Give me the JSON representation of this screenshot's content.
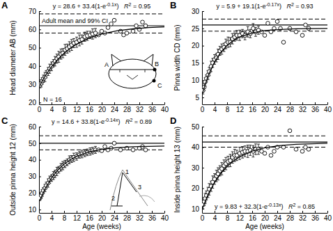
{
  "chart_data": [
    {
      "type": "scatter",
      "label": "A",
      "y_label": "Head diameter AB (mm)",
      "xlim": [
        0,
        40
      ],
      "xticks": [
        0,
        4,
        8,
        12,
        16,
        20,
        24,
        28,
        32,
        36,
        40
      ],
      "ylim": [
        19,
        70
      ],
      "yticks": [
        20,
        30,
        40,
        50,
        60,
        70
      ],
      "equation": [
        "y = 28.6 + 33.4(1-e",
        "-0.1x",
        ")"
      ],
      "r2": [
        "R",
        "2",
        " = 0.95"
      ],
      "adult_mean": 62,
      "adult_ci": [
        58,
        68.5
      ],
      "annotations": [
        "Adult mean and 99% CI",
        "N = 16",
        "A",
        "B",
        "C"
      ],
      "series": [
        {
          "type": "scatter",
          "marker": "circle",
          "x": [
            0.3,
            0.7,
            1,
            1.4,
            1.9,
            2.3,
            2.9,
            3.4,
            4,
            4.6,
            5.1,
            5.7,
            6.3,
            7,
            7.6,
            8.3,
            9,
            9.7,
            10.4,
            11.1,
            12,
            12.9,
            13.7,
            14.6,
            15.4,
            16.3,
            17.1,
            18
          ],
          "values": [
            29.5,
            30.5,
            31.8,
            33,
            34,
            35.5,
            37,
            38.5,
            39.8,
            41.5,
            42.6,
            44,
            45,
            46.5,
            47,
            48.8,
            49.5,
            50.5,
            51.5,
            52.5,
            53,
            54,
            54.5,
            56,
            56.5,
            57,
            57.5,
            58
          ],
          "error": [
            1.5,
            2,
            1.8,
            2,
            2.5,
            2,
            2.2,
            2.5,
            2.4,
            2,
            2.6,
            2.5,
            3,
            2.8,
            2.5,
            3,
            2.5,
            2.8,
            3,
            2.5,
            2.8,
            3,
            2.5,
            2.5,
            2.5,
            2,
            2.8,
            2.5
          ]
        },
        {
          "type": "scatter",
          "marker": "circle",
          "x": [
            19,
            20,
            21,
            22,
            23,
            24,
            26,
            27,
            28,
            30,
            31,
            32,
            33,
            34
          ],
          "values": [
            57,
            59,
            58,
            61,
            63,
            65,
            59,
            57,
            58,
            59,
            62,
            60,
            64,
            62
          ]
        },
        {
          "type": "line",
          "line_style": "solid",
          "x": [
            0,
            2,
            4,
            6,
            8,
            10,
            12,
            16,
            20,
            25,
            30,
            35,
            40
          ],
          "values": [
            28.6,
            34.65,
            39.6,
            43.7,
            47,
            49.7,
            51.9,
            55.3,
            57.5,
            59.3,
            60.3,
            61,
            61.4
          ]
        }
      ]
    },
    {
      "type": "scatter",
      "label": "B",
      "y_label": "Pinna width CD (mm)",
      "xlim": [
        0,
        40
      ],
      "xticks": [
        0,
        4,
        8,
        12,
        16,
        20,
        24,
        28,
        32,
        36,
        40
      ],
      "ylim": [
        3,
        30
      ],
      "yticks": [
        5,
        10,
        15,
        20,
        25,
        30
      ],
      "equation": [
        "y = 5.9 + 19.1(1-e",
        "-0.17x",
        ")"
      ],
      "r2": [
        "R",
        "2",
        " = 0.93"
      ],
      "adult_mean": 26,
      "adult_ci": [
        24.2,
        27.7
      ],
      "series": [
        {
          "type": "scatter",
          "marker": "circle",
          "x": [
            0.3,
            0.7,
            1,
            1.4,
            1.9,
            2.3,
            2.9,
            3.4,
            4,
            4.6,
            5.1,
            5.7,
            6.3,
            7,
            7.6,
            8.3,
            9,
            9.7,
            10.4,
            11.1,
            12,
            12.9,
            13.7,
            14.6,
            15.4,
            16.3,
            17.1,
            18
          ],
          "values": [
            7,
            8,
            9.5,
            10.5,
            11.5,
            12.5,
            14,
            15,
            16,
            16.5,
            17.5,
            18.5,
            19,
            19.5,
            20.5,
            21,
            21,
            22,
            22.5,
            23,
            23,
            23.5,
            23,
            24,
            23.5,
            25,
            24,
            24.5
          ],
          "error": [
            1,
            1,
            1.2,
            1,
            1.3,
            1.2,
            1.5,
            1.3,
            1.4,
            1.2,
            1.5,
            1.3,
            1.5,
            1.2,
            1.4,
            1.5,
            1.3,
            1.5,
            1.2,
            1.4,
            1.5,
            1.2,
            1.3,
            1.5,
            1.2,
            1.4,
            1.3,
            1.2
          ]
        },
        {
          "type": "scatter",
          "marker": "circle",
          "x": [
            19,
            20,
            21,
            22,
            23,
            24,
            25,
            26,
            28,
            30,
            32,
            33,
            34
          ],
          "values": [
            24,
            23,
            26.5,
            24,
            25,
            27,
            25,
            21,
            25,
            24,
            23,
            26,
            25
          ]
        },
        {
          "type": "line",
          "line_style": "solid",
          "x": [
            0,
            2,
            4,
            6,
            8,
            10,
            12,
            16,
            20,
            25,
            30,
            40
          ],
          "values": [
            5.9,
            11.4,
            15.3,
            18.1,
            20.1,
            21.5,
            22.5,
            23.7,
            24.4,
            24.7,
            24.9,
            25
          ]
        }
      ]
    },
    {
      "type": "scatter",
      "label": "C",
      "y_label": "Outside pinna height 12 (mm)",
      "x_label": "Age (weeks)",
      "xlim": [
        0,
        40
      ],
      "xticks": [
        0,
        4,
        8,
        12,
        16,
        20,
        24,
        28,
        32,
        36,
        40
      ],
      "ylim": [
        8,
        60
      ],
      "yticks": [
        10,
        20,
        30,
        40,
        50,
        60
      ],
      "equation": [
        "y = 14.6 + 33.8(1-e",
        "-0.14x",
        ")"
      ],
      "r2": [
        "R",
        "2",
        " = 0.89"
      ],
      "adult_mean": 50,
      "adult_ci": [
        46,
        54.5
      ],
      "annotations": [
        "1",
        "2",
        "3"
      ],
      "series": [
        {
          "type": "scatter",
          "marker": "circle",
          "x": [
            0.3,
            0.7,
            1,
            1.4,
            1.9,
            2.3,
            2.9,
            3.4,
            4,
            4.6,
            5.1,
            5.7,
            6.3,
            7,
            7.6,
            8.3,
            9,
            9.7,
            10.4,
            11.1,
            12,
            12.9,
            13.7,
            14.6,
            15.4,
            16.3,
            17.1,
            18
          ],
          "values": [
            17,
            18.5,
            20,
            21.5,
            23,
            24.5,
            26,
            28,
            29,
            30.5,
            31.5,
            33,
            34,
            35.5,
            36.5,
            37.5,
            38.5,
            40,
            40.5,
            41.5,
            42,
            43,
            43.5,
            44,
            44.5,
            45,
            45.5,
            46
          ],
          "error": [
            1.5,
            1.8,
            2,
            1.8,
            2.2,
            2,
            2.5,
            2.2,
            2,
            2.4,
            2.2,
            2.5,
            2,
            2.3,
            2.5,
            2.2,
            2,
            2.4,
            2.1,
            2.5,
            2.2,
            2,
            2.3,
            2.1,
            2,
            2.2,
            2,
            2.1
          ]
        },
        {
          "type": "scatter",
          "marker": "circle",
          "x": [
            19,
            20,
            21,
            22,
            23,
            24,
            26,
            28,
            30,
            32,
            33,
            34
          ],
          "values": [
            46,
            45.5,
            48,
            46,
            47,
            50,
            46,
            47,
            46,
            47,
            48,
            46
          ]
        },
        {
          "type": "line",
          "line_style": "solid",
          "x": [
            0,
            2,
            4,
            6,
            8,
            10,
            12,
            16,
            20,
            25,
            30,
            40
          ],
          "values": [
            14.6,
            22.8,
            29.1,
            33.8,
            37.4,
            40.1,
            42.1,
            44.8,
            46.3,
            47.4,
            47.9,
            48.3
          ]
        }
      ]
    },
    {
      "type": "scatter",
      "label": "D",
      "y_label": "Inside pinna height 13 (mm)",
      "x_label": "Age (weeks)",
      "xlim": [
        0,
        40
      ],
      "xticks": [
        0,
        4,
        8,
        12,
        16,
        20,
        24,
        28,
        32,
        36,
        40
      ],
      "ylim": [
        8,
        50
      ],
      "yticks": [
        10,
        20,
        30,
        40,
        50
      ],
      "equation": [
        "y = 9.83 + 32.3(1-e",
        "-0.13x",
        ")"
      ],
      "r2": [
        "R",
        "2",
        " = 0.85"
      ],
      "adult_mean": 42.5,
      "adult_ci": [
        40,
        45.5
      ],
      "series": [
        {
          "type": "scatter",
          "marker": "circle",
          "x": [
            0.3,
            0.7,
            1,
            1.4,
            1.9,
            2.3,
            2.9,
            3.4,
            4,
            4.6,
            5.1,
            5.7,
            6.3,
            7,
            7.6,
            8.3,
            9,
            9.7,
            10.4,
            11.1,
            12,
            12.9,
            13.7,
            14.6,
            15.4,
            16.3,
            17.1,
            18
          ],
          "values": [
            12,
            13.5,
            15,
            16.5,
            18,
            19.5,
            21,
            23,
            24.5,
            26,
            27,
            28.5,
            29.5,
            31,
            32,
            33,
            33.5,
            35,
            36,
            36,
            37,
            37.5,
            38,
            38,
            38.5,
            38,
            39,
            39
          ],
          "error": [
            2,
            2,
            2.5,
            2.2,
            2.5,
            2.8,
            2.5,
            3,
            2.6,
            2.8,
            3,
            2.5,
            3,
            2.8,
            3,
            2.6,
            3,
            2.8,
            3,
            2.5,
            3,
            2.8,
            2.6,
            3,
            2.5,
            2.8,
            2.6,
            2.5
          ]
        },
        {
          "type": "scatter",
          "marker": "circle",
          "x": [
            19,
            20,
            21,
            22,
            23,
            24,
            26,
            28,
            30,
            32,
            33,
            34
          ],
          "values": [
            38,
            37,
            40,
            36,
            38,
            40,
            40,
            48,
            39,
            38,
            40,
            39
          ]
        },
        {
          "type": "line",
          "line_style": "solid",
          "x": [
            0,
            2,
            4,
            6,
            8,
            10,
            12,
            16,
            20,
            25,
            30,
            40
          ],
          "values": [
            9.83,
            17.2,
            22.9,
            27.3,
            30.7,
            33.3,
            35.3,
            38.1,
            39.7,
            40.8,
            41.4,
            41.9
          ]
        }
      ]
    }
  ]
}
